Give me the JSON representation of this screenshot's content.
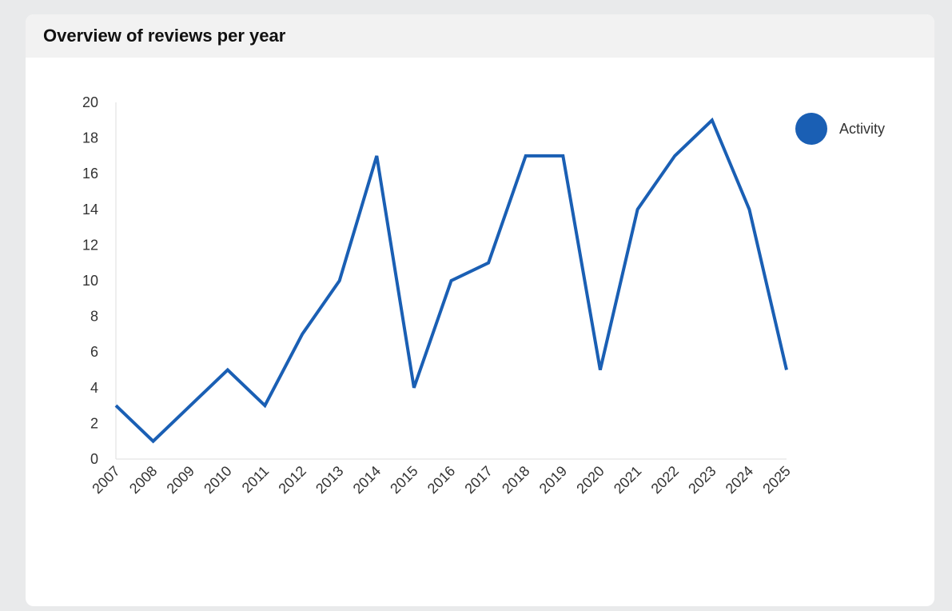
{
  "card": {
    "title": "Overview of reviews per year"
  },
  "chart_data": {
    "type": "line",
    "title": "",
    "xlabel": "",
    "ylabel": "",
    "categories": [
      "2007",
      "2008",
      "2009",
      "2010",
      "2011",
      "2012",
      "2013",
      "2014",
      "2015",
      "2016",
      "2017",
      "2018",
      "2019",
      "2020",
      "2021",
      "2022",
      "2023",
      "2024",
      "2025"
    ],
    "series": [
      {
        "name": "Activity",
        "color": "#1a5fb4",
        "values": [
          3,
          1,
          3,
          5,
          3,
          7,
          10,
          17,
          4,
          10,
          11,
          17,
          17,
          5,
          14,
          17,
          19,
          14,
          5
        ]
      }
    ],
    "ylim": [
      0,
      20
    ],
    "yticks": [
      0,
      2,
      4,
      6,
      8,
      10,
      12,
      14,
      16,
      18,
      20
    ],
    "grid": false,
    "legend_position": "top-right"
  }
}
